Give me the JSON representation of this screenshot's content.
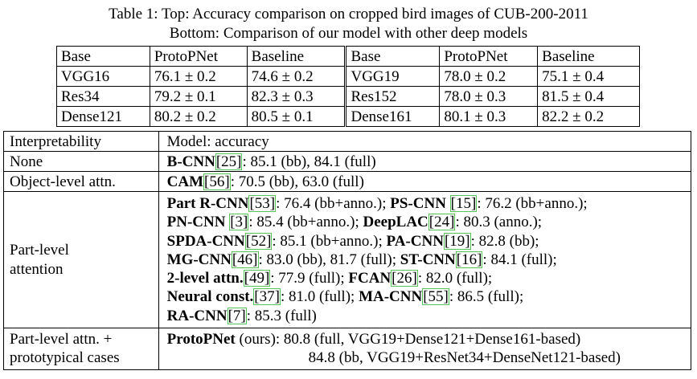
{
  "caption": {
    "line1": "Table 1: Top: Accuracy comparison on cropped bird images of CUB-200-2011",
    "line2": "Bottom: Comparison of our model with other deep models"
  },
  "top_table": {
    "headers": [
      "Base",
      "ProtoPNet",
      "Baseline",
      "Base",
      "ProtoPNet",
      "Baseline"
    ],
    "rows": [
      [
        "VGG16",
        "76.1 ± 0.2",
        "74.6 ± 0.2",
        "VGG19",
        "78.0 ± 0.2",
        "75.1 ± 0.4"
      ],
      [
        "Res34",
        "79.2 ± 0.1",
        "82.3 ± 0.3",
        "Res152",
        "78.0 ± 0.3",
        "81.5 ± 0.4"
      ],
      [
        "Dense121",
        "80.2 ± 0.2",
        "80.5 ± 0.1",
        "Dense161",
        "80.1 ± 0.3",
        "82.2 ± 0.2"
      ]
    ]
  },
  "bottom_table": {
    "header": [
      "Interpretability",
      "Model: accuracy"
    ],
    "none": {
      "label": "None",
      "model": "B-CNN",
      "cite": "[25]",
      "text": ": 85.1 (bb), 84.1 (full)"
    },
    "object": {
      "label": "Object-level attn.",
      "model": "CAM",
      "cite": "[56]",
      "text": ": 70.5 (bb), 63.0 (full)"
    },
    "part": {
      "label_l1": "Part-level",
      "label_l2": "attention",
      "l1": {
        "m1": "Part R-CNN",
        "c1": "[53]",
        "t1": ": 76.4 (bb+anno.); ",
        "m2": "PS-CNN",
        "gap2": " ",
        "c2": "[15]",
        "t2": ": 76.2 (bb+anno.);"
      },
      "l2": {
        "m1": "PN-CNN",
        "gap1": " ",
        "c1": "[3]",
        "t1": ": 85.4 (bb+anno.); ",
        "m2": "DeepLAC",
        "c2": "[24]",
        "t2": ": 80.3 (anno.);"
      },
      "l3": {
        "m1": "SPDA-CNN",
        "c1": "[52]",
        "t1": ": 85.1 (bb+anno.); ",
        "m2": "PA-CNN",
        "c2": "[19]",
        "t2": ": 82.8 (bb);"
      },
      "l4": {
        "m1": "MG-CNN",
        "c1": "[46]",
        "t1": ": 83.0 (bb), 81.7 (full); ",
        "m2": "ST-CNN",
        "c2": "[16]",
        "t2": ": 84.1 (full);"
      },
      "l5": {
        "m1": "2-level attn.",
        "c1": "[49]",
        "t1": ": 77.9 (full); ",
        "m2": "FCAN",
        "c2": "[26]",
        "t2": ": 82.0 (full);"
      },
      "l6": {
        "m1": "Neural const.",
        "c1": "[37]",
        "t1": ": 81.0 (full); ",
        "m2": "MA-CNN",
        "c2": "[55]",
        "t2": ": 86.5 (full);"
      },
      "l7": {
        "m1": "RA-CNN",
        "c1": "[7]",
        "t1": ": 85.3 (full)"
      }
    },
    "proto": {
      "label_l1": "Part-level attn. +",
      "label_l2": "prototypical cases",
      "model": "ProtoPNet",
      "text1": " (ours): 80.8 (full, VGG19+Dense121+Dense161-based)",
      "text2": "84.8 (bb, VGG19+ResNet34+DenseNet121-based)"
    }
  }
}
